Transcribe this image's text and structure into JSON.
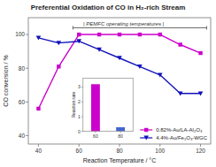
{
  "chart_data": [
    {
      "type": "line",
      "title": "Preferential Oxidation of CO in H₂-rich Stream",
      "x_label": "Reaction Temperature / °C",
      "y_label": "CO conversion / %",
      "x": [
        40,
        50,
        60,
        70,
        80,
        90,
        100,
        110,
        120
      ],
      "series": [
        {
          "name": "0.82%-Au/LA-Al₂O₃",
          "color": "#CC00CC",
          "marker": "square",
          "values": [
            56,
            81,
            100,
            100,
            100,
            100,
            100,
            94,
            89
          ]
        },
        {
          "name": "4.4%-Au/Fe₂O₃-WGC",
          "color": "#1111BB",
          "marker": "triangle-down",
          "values": [
            98,
            95,
            96,
            91,
            86,
            81,
            76,
            65,
            65
          ]
        }
      ],
      "xlim": [
        35,
        125
      ],
      "ylim": [
        35,
        110
      ],
      "xticks": [
        40,
        60,
        80,
        100,
        120
      ],
      "yticks": [
        40,
        60,
        80,
        100
      ],
      "grid": false,
      "legend": "lower right",
      "annotations": [
        {
          "text": "| PEMFC operating temperatures |",
          "x": 82,
          "y": 105.5,
          "x_range": [
            57,
            123
          ],
          "y_bracket": 104
        }
      ]
    },
    {
      "type": "bar",
      "y_label": "Reaction rate",
      "x": [
        60,
        80
      ],
      "values": [
        3.2,
        0.28
      ],
      "colors": [
        "#CC00CC",
        "#4466CC"
      ],
      "xlim": [
        50,
        90
      ],
      "ylim": [
        0,
        3.6
      ],
      "xticks": [
        60,
        80
      ],
      "yticks": [
        0,
        1,
        2,
        3
      ]
    }
  ]
}
